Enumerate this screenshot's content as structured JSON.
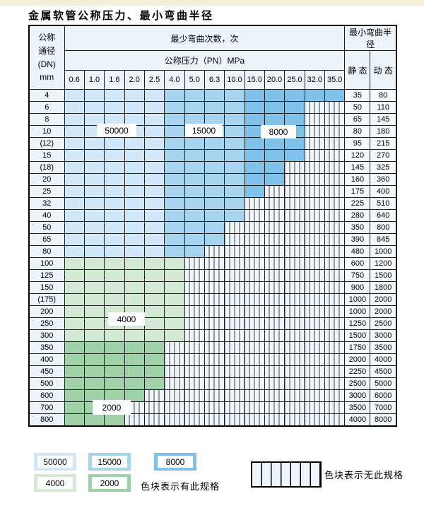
{
  "title": "金属软管公称压力、最小弯曲半径",
  "table": {
    "corner_lines": [
      "公称",
      "通径",
      "(DN)",
      "mm"
    ],
    "bend_header": "最少弯曲次数，次",
    "radius_header": "最小弯曲半径",
    "pressure_header": "公称压力（PN）MPa",
    "pressure_cols": [
      "0.6",
      "1.0",
      "1.6",
      "2.0",
      "2.5",
      "4.0",
      "5.0",
      "6.3",
      "10.0",
      "15.0",
      "20.0",
      "25.0",
      "32.0",
      "35.0"
    ],
    "static_header": "静 态",
    "dynamic_header": "动 态",
    "blue_bands": {
      "light_cols": 5,
      "mid_cols": 4,
      "light_cycles": "50000",
      "mid_cycles": "15000",
      "dark_cycles": "8000"
    },
    "green_cycles": {
      "green_light": "4000",
      "green_dark": "2000"
    },
    "rows": [
      {
        "dn": "4",
        "shade": "blue",
        "colored": 14,
        "static": "35",
        "dynamic": "80"
      },
      {
        "dn": "6",
        "shade": "blue",
        "colored": 12,
        "static": "50",
        "dynamic": "110"
      },
      {
        "dn": "8",
        "shade": "blue",
        "colored": 12,
        "static": "65",
        "dynamic": "145"
      },
      {
        "dn": "10",
        "shade": "blue",
        "colored": 12,
        "static": "80",
        "dynamic": "180"
      },
      {
        "dn": "(12)",
        "shade": "blue",
        "colored": 12,
        "static": "95",
        "dynamic": "215"
      },
      {
        "dn": "15",
        "shade": "blue",
        "colored": 12,
        "static": "120",
        "dynamic": "270"
      },
      {
        "dn": "(18)",
        "shade": "blue",
        "colored": 11,
        "static": "145",
        "dynamic": "325"
      },
      {
        "dn": "20",
        "shade": "blue",
        "colored": 11,
        "static": "160",
        "dynamic": "360"
      },
      {
        "dn": "25",
        "shade": "blue",
        "colored": 10,
        "static": "175",
        "dynamic": "400"
      },
      {
        "dn": "32",
        "shade": "blue",
        "colored": 9,
        "static": "225",
        "dynamic": "510"
      },
      {
        "dn": "40",
        "shade": "blue",
        "colored": 9,
        "static": "280",
        "dynamic": "640"
      },
      {
        "dn": "50",
        "shade": "blue",
        "colored": 8,
        "static": "350",
        "dynamic": "800"
      },
      {
        "dn": "65",
        "shade": "blue",
        "colored": 8,
        "static": "390",
        "dynamic": "845"
      },
      {
        "dn": "80",
        "shade": "blue",
        "colored": 7,
        "static": "480",
        "dynamic": "1000"
      },
      {
        "dn": "100",
        "shade": "green_light",
        "colored": 6,
        "static": "600",
        "dynamic": "1200"
      },
      {
        "dn": "125",
        "shade": "green_light",
        "colored": 6,
        "static": "750",
        "dynamic": "1500"
      },
      {
        "dn": "150",
        "shade": "green_light",
        "colored": 6,
        "static": "900",
        "dynamic": "1800"
      },
      {
        "dn": "(175)",
        "shade": "green_light",
        "colored": 6,
        "static": "1000",
        "dynamic": "2000"
      },
      {
        "dn": "200",
        "shade": "green_light",
        "colored": 6,
        "static": "1000",
        "dynamic": "2000"
      },
      {
        "dn": "250",
        "shade": "green_light",
        "colored": 6,
        "static": "1250",
        "dynamic": "2500"
      },
      {
        "dn": "300",
        "shade": "green_light",
        "colored": 6,
        "static": "1500",
        "dynamic": "3000"
      },
      {
        "dn": "350",
        "shade": "green_dark",
        "colored": 5,
        "static": "1750",
        "dynamic": "3500"
      },
      {
        "dn": "400",
        "shade": "green_dark",
        "colored": 5,
        "static": "2000",
        "dynamic": "4000"
      },
      {
        "dn": "450",
        "shade": "green_dark",
        "colored": 5,
        "static": "2250",
        "dynamic": "4500"
      },
      {
        "dn": "500",
        "shade": "green_dark",
        "colored": 5,
        "static": "2500",
        "dynamic": "5000"
      },
      {
        "dn": "600",
        "shade": "green_dark",
        "colored": 4,
        "static": "3000",
        "dynamic": "6000"
      },
      {
        "dn": "700",
        "shade": "green_dark",
        "colored": 3,
        "static": "3500",
        "dynamic": "7000"
      },
      {
        "dn": "800",
        "shade": "green_dark",
        "colored": 3,
        "static": "4000",
        "dynamic": "8000"
      }
    ],
    "callouts": [
      {
        "text": "50000"
      },
      {
        "text": "15000"
      },
      {
        "text": "8000"
      },
      {
        "text": "4000"
      },
      {
        "text": "2000"
      }
    ]
  },
  "legend": {
    "items": [
      {
        "label": "50000",
        "color_key": "blue_50000"
      },
      {
        "label": "15000",
        "color_key": "blue_15000"
      },
      {
        "label": "8000",
        "color_key": "blue_8000"
      },
      {
        "label": "4000",
        "color_key": "green_4000"
      },
      {
        "label": "2000",
        "color_key": "green_2000"
      }
    ],
    "has_spec_text": "色块表示有此规格",
    "no_spec_text": "色块表示无此规格"
  },
  "palette": {
    "blue_50000": "#cfe7f8",
    "blue_15000": "#a6d4ef",
    "blue_8000": "#7fc2e9",
    "green_4000": "#d4e9d3",
    "green_2000": "#9fd2a8",
    "hatch_bg": "#eef6fb",
    "header_bg": "#ebf4fb",
    "value_bg": "#f4f9fd",
    "top_band": "#f3eeda"
  }
}
